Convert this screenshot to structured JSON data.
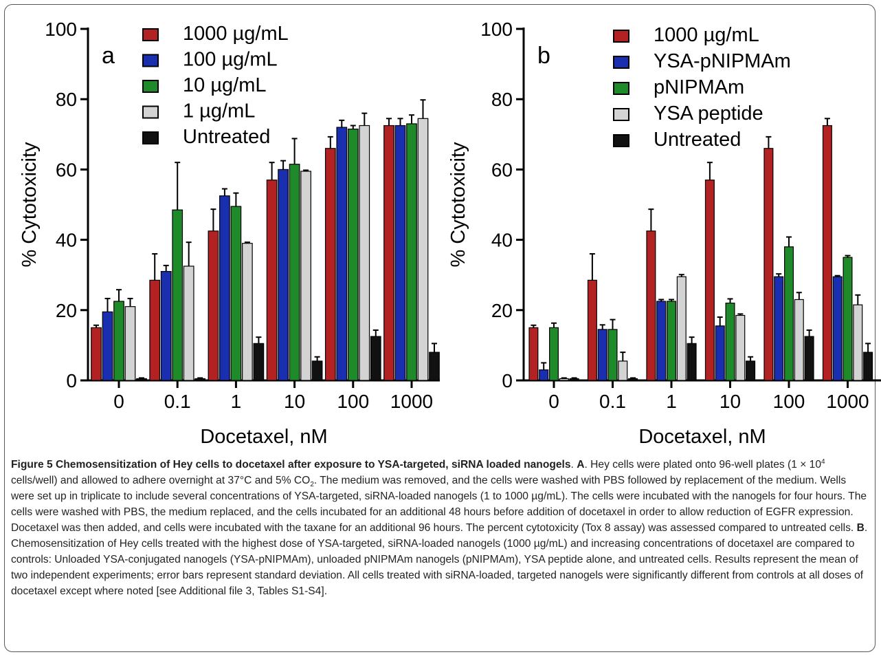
{
  "colors": {
    "series": [
      "#b22222",
      "#1a2fb0",
      "#1f8a2a",
      "#d3d3d3",
      "#111111"
    ],
    "frame": "#555555"
  },
  "chart_data": [
    {
      "type": "bar",
      "panel_label": "a",
      "xlabel": "Docetaxel, nM",
      "ylabel": "% Cytotoxicity",
      "categories": [
        "0",
        "0.1",
        "1",
        "10",
        "100",
        "1000"
      ],
      "ylim": [
        0,
        100
      ],
      "yticks": [
        "0",
        "20",
        "40",
        "60",
        "80",
        "100"
      ],
      "grid": false,
      "legend_position": "top-center",
      "series": [
        {
          "name": "1000 µg/mL",
          "values": [
            15,
            28.5,
            42.5,
            57,
            66,
            72.5
          ],
          "errors": [
            0.7,
            7.5,
            6.2,
            5,
            3.3,
            2
          ]
        },
        {
          "name": "100 µg/mL",
          "values": [
            19.5,
            31,
            52.5,
            60,
            72,
            72.5
          ],
          "errors": [
            3.8,
            1.7,
            2,
            2.5,
            2,
            2
          ]
        },
        {
          "name": "10 µg/mL",
          "values": [
            22.5,
            48.5,
            49.5,
            61.5,
            71.5,
            73
          ],
          "errors": [
            3.3,
            13.5,
            3.8,
            7.3,
            1,
            2.5
          ]
        },
        {
          "name": "1 µg/mL",
          "values": [
            21,
            32.5,
            39,
            59.5,
            72.5,
            74.5
          ],
          "errors": [
            2.3,
            6.8,
            0.3,
            0.3,
            3.5,
            5.3
          ]
        },
        {
          "name": "Untreated",
          "values": [
            0.5,
            0.5,
            10.5,
            5.5,
            12.5,
            8
          ],
          "errors": [
            0.2,
            0.2,
            1.8,
            1.2,
            1.8,
            2.5
          ]
        }
      ]
    },
    {
      "type": "bar",
      "panel_label": "b",
      "xlabel": "Docetaxel, nM",
      "ylabel": "% Cytotoxicity",
      "categories": [
        "0",
        "0.1",
        "1",
        "10",
        "100",
        "1000"
      ],
      "ylim": [
        0,
        100
      ],
      "yticks": [
        "0",
        "20",
        "40",
        "60",
        "80",
        "100"
      ],
      "grid": false,
      "legend_position": "top-center",
      "series": [
        {
          "name": "1000 µg/mL",
          "values": [
            15,
            28.5,
            42.5,
            57,
            66,
            72.5
          ],
          "errors": [
            0.7,
            7.5,
            6.2,
            5,
            3.3,
            2
          ]
        },
        {
          "name": "YSA-pNIPMAm",
          "values": [
            3,
            14.5,
            22.5,
            15.5,
            29.5,
            29.5
          ],
          "errors": [
            2,
            1.3,
            0.5,
            2.5,
            0.8,
            0.3
          ]
        },
        {
          "name": "pNIPMAm",
          "values": [
            15,
            14.5,
            22.5,
            22,
            38,
            35
          ],
          "errors": [
            1.3,
            2.8,
            0.5,
            1.2,
            2.8,
            0.5
          ]
        },
        {
          "name": "YSA peptide",
          "values": [
            0.5,
            5.5,
            29.5,
            18.5,
            23,
            21.5
          ],
          "errors": [
            0.2,
            2.5,
            0.6,
            0.4,
            2,
            2.8
          ]
        },
        {
          "name": "Untreated",
          "values": [
            0.5,
            0.5,
            10.5,
            5.5,
            12.5,
            8
          ],
          "errors": [
            0.2,
            0.2,
            1.8,
            1.2,
            1.8,
            2.5
          ]
        }
      ]
    }
  ],
  "caption": {
    "fig_label": "Figure 5",
    "title": "Chemosensitization of Hey cells to docetaxel after exposure to YSA-targeted, siRNA loaded nanogels",
    "title_end": ". ",
    "label_a": "A",
    "text_a1": ". Hey cells were plated onto 96-well plates (1 × 10",
    "sup_a": "4",
    "text_a2": " cells/well) and allowed to adhere overnight at 37°C and 5% CO",
    "sub_a": "2",
    "text_a3": ". The medium was removed, and the cells were washed with PBS followed by replacement of the medium. Wells were set up in triplicate to include several concentrations of YSA-targeted, siRNA-loaded nanogels (1 to 1000 µg/mL). The cells were incubated with the nanogels for four hours. The cells were washed with PBS, the medium replaced, and the cells incubated for an additional 48 hours before addition of docetaxel in order to allow reduction of EGFR expression. Docetaxel was then added, and cells were incubated with the taxane for an additional 96 hours. The percent cytotoxicity (Tox 8 assay) was assessed compared to untreated cells. ",
    "label_b": "B",
    "text_b": ". Chemosensitization of Hey cells treated with the highest dose of YSA-targeted, siRNA-loaded nanogels (1000 µg/mL) and increasing concentrations of docetaxel are compared to controls: Unloaded YSA-conjugated nanogels (YSA-pNIPMAm), unloaded pNIPMAm nanogels (pNIPMAm), YSA peptide alone, and untreated cells. Results represent the mean of two independent experiments; error bars represent standard deviation. All cells treated with siRNA-loaded, targeted nanogels were significantly different from controls at all doses of docetaxel except where noted [see Additional file 3, Tables S1-S4]."
  }
}
